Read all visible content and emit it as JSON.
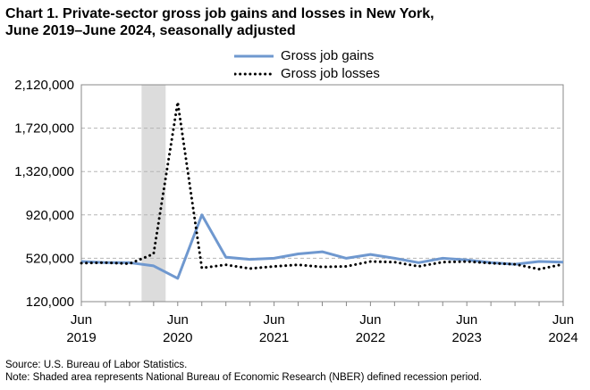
{
  "title_line1": "Chart 1. Private-sector gross job gains and losses in New York,",
  "title_line2": "June 2019–June 2024, seasonally adjusted",
  "footer": {
    "source": "Source: U.S. Bureau of Labor Statistics.",
    "note": "Note: Shaded area represents National Bureau of Economic Research (NBER) defined  recession period."
  },
  "chart_data": {
    "type": "line",
    "title": "Chart 1. Private-sector gross job gains and losses in New York, June 2019–June 2024, seasonally adjusted",
    "xlabel": "",
    "ylabel": "",
    "ylim": [
      120000,
      2120000
    ],
    "y_ticks": [
      120000,
      520000,
      920000,
      1320000,
      1720000,
      2120000
    ],
    "y_tick_labels": [
      "120,000",
      "520,000",
      "920,000",
      "1,320,000",
      "1,720,000",
      "2,120,000"
    ],
    "x_ticks": [
      {
        "month": "Jun",
        "year": "2019",
        "index": 0
      },
      {
        "month": "Jun",
        "year": "2020",
        "index": 4
      },
      {
        "month": "Jun",
        "year": "2021",
        "index": 8
      },
      {
        "month": "Jun",
        "year": "2022",
        "index": 12
      },
      {
        "month": "Jun",
        "year": "2023",
        "index": 16
      },
      {
        "month": "Jun",
        "year": "2024",
        "index": 20
      }
    ],
    "categories": [
      "Jun 2019",
      "Sep 2019",
      "Dec 2019",
      "Mar 2020",
      "Jun 2020",
      "Sep 2020",
      "Dec 2020",
      "Mar 2021",
      "Jun 2021",
      "Sep 2021",
      "Dec 2021",
      "Mar 2022",
      "Jun 2022",
      "Sep 2022",
      "Dec 2022",
      "Mar 2023",
      "Jun 2023",
      "Sep 2023",
      "Dec 2023",
      "Mar 2024",
      "Jun 2024"
    ],
    "recession": {
      "start_index": 2.5,
      "end_index": 3.5
    },
    "grid": true,
    "legend_position": "top-center",
    "series": [
      {
        "name": "Gross job gains",
        "style": "solid",
        "color": "#6f98cf",
        "values": [
          490000,
          480000,
          480000,
          450000,
          335000,
          920000,
          530000,
          510000,
          520000,
          560000,
          580000,
          520000,
          555000,
          520000,
          480000,
          520000,
          505000,
          480000,
          465000,
          490000,
          485000
        ]
      },
      {
        "name": "Gross job losses",
        "style": "dotted",
        "color": "#000000",
        "values": [
          475000,
          480000,
          470000,
          560000,
          1960000,
          430000,
          460000,
          425000,
          445000,
          460000,
          440000,
          445000,
          490000,
          485000,
          445000,
          485000,
          490000,
          475000,
          465000,
          420000,
          465000
        ]
      }
    ]
  }
}
